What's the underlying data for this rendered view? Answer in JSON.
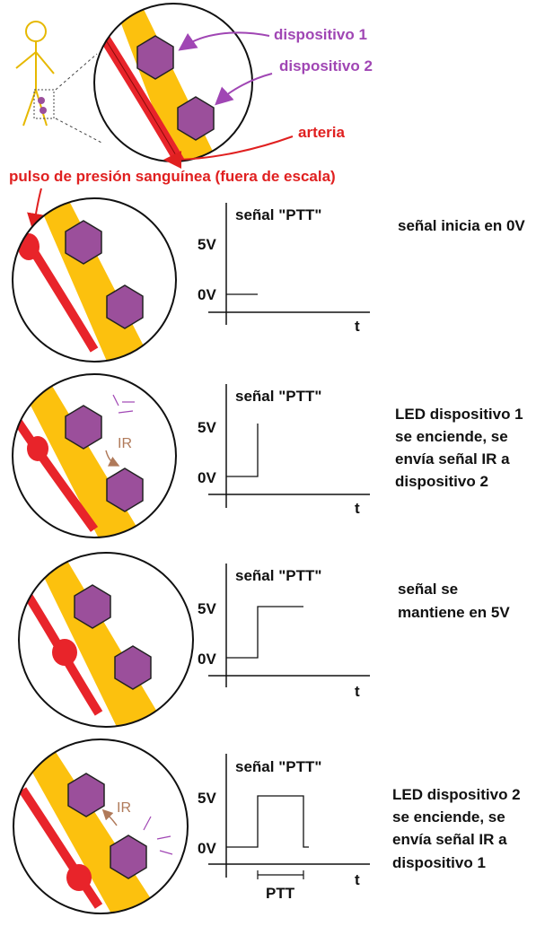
{
  "labels": {
    "device1": "dispositivo 1",
    "device2": "dispositivo 2",
    "artery": "arteria",
    "pulse": "pulso de presión sanguínea (fuera de escala)",
    "ir": "IR"
  },
  "graph": {
    "title": "señal \"PTT\"",
    "y_high": "5V",
    "y_low": "0V",
    "x_label": "t",
    "ptt_label": "PTT"
  },
  "steps": [
    {
      "lines": [
        "señal inicia en 0V"
      ]
    },
    {
      "lines": [
        "LED dispositivo 1",
        "se enciende, se",
        "envía señal IR a",
        "dispositivo 2"
      ]
    },
    {
      "lines": [
        "señal se",
        "mantiene en 5V"
      ]
    },
    {
      "lines": [
        "LED dispositivo 2",
        "se enciende, se",
        "envía señal IR a",
        "dispositivo 1"
      ]
    }
  ],
  "colors": {
    "device": "#9b4f9b",
    "tissue": "#fcc10e",
    "artery": "#e8242a",
    "label_purple": "#a046b4",
    "label_red": "#e02020"
  }
}
